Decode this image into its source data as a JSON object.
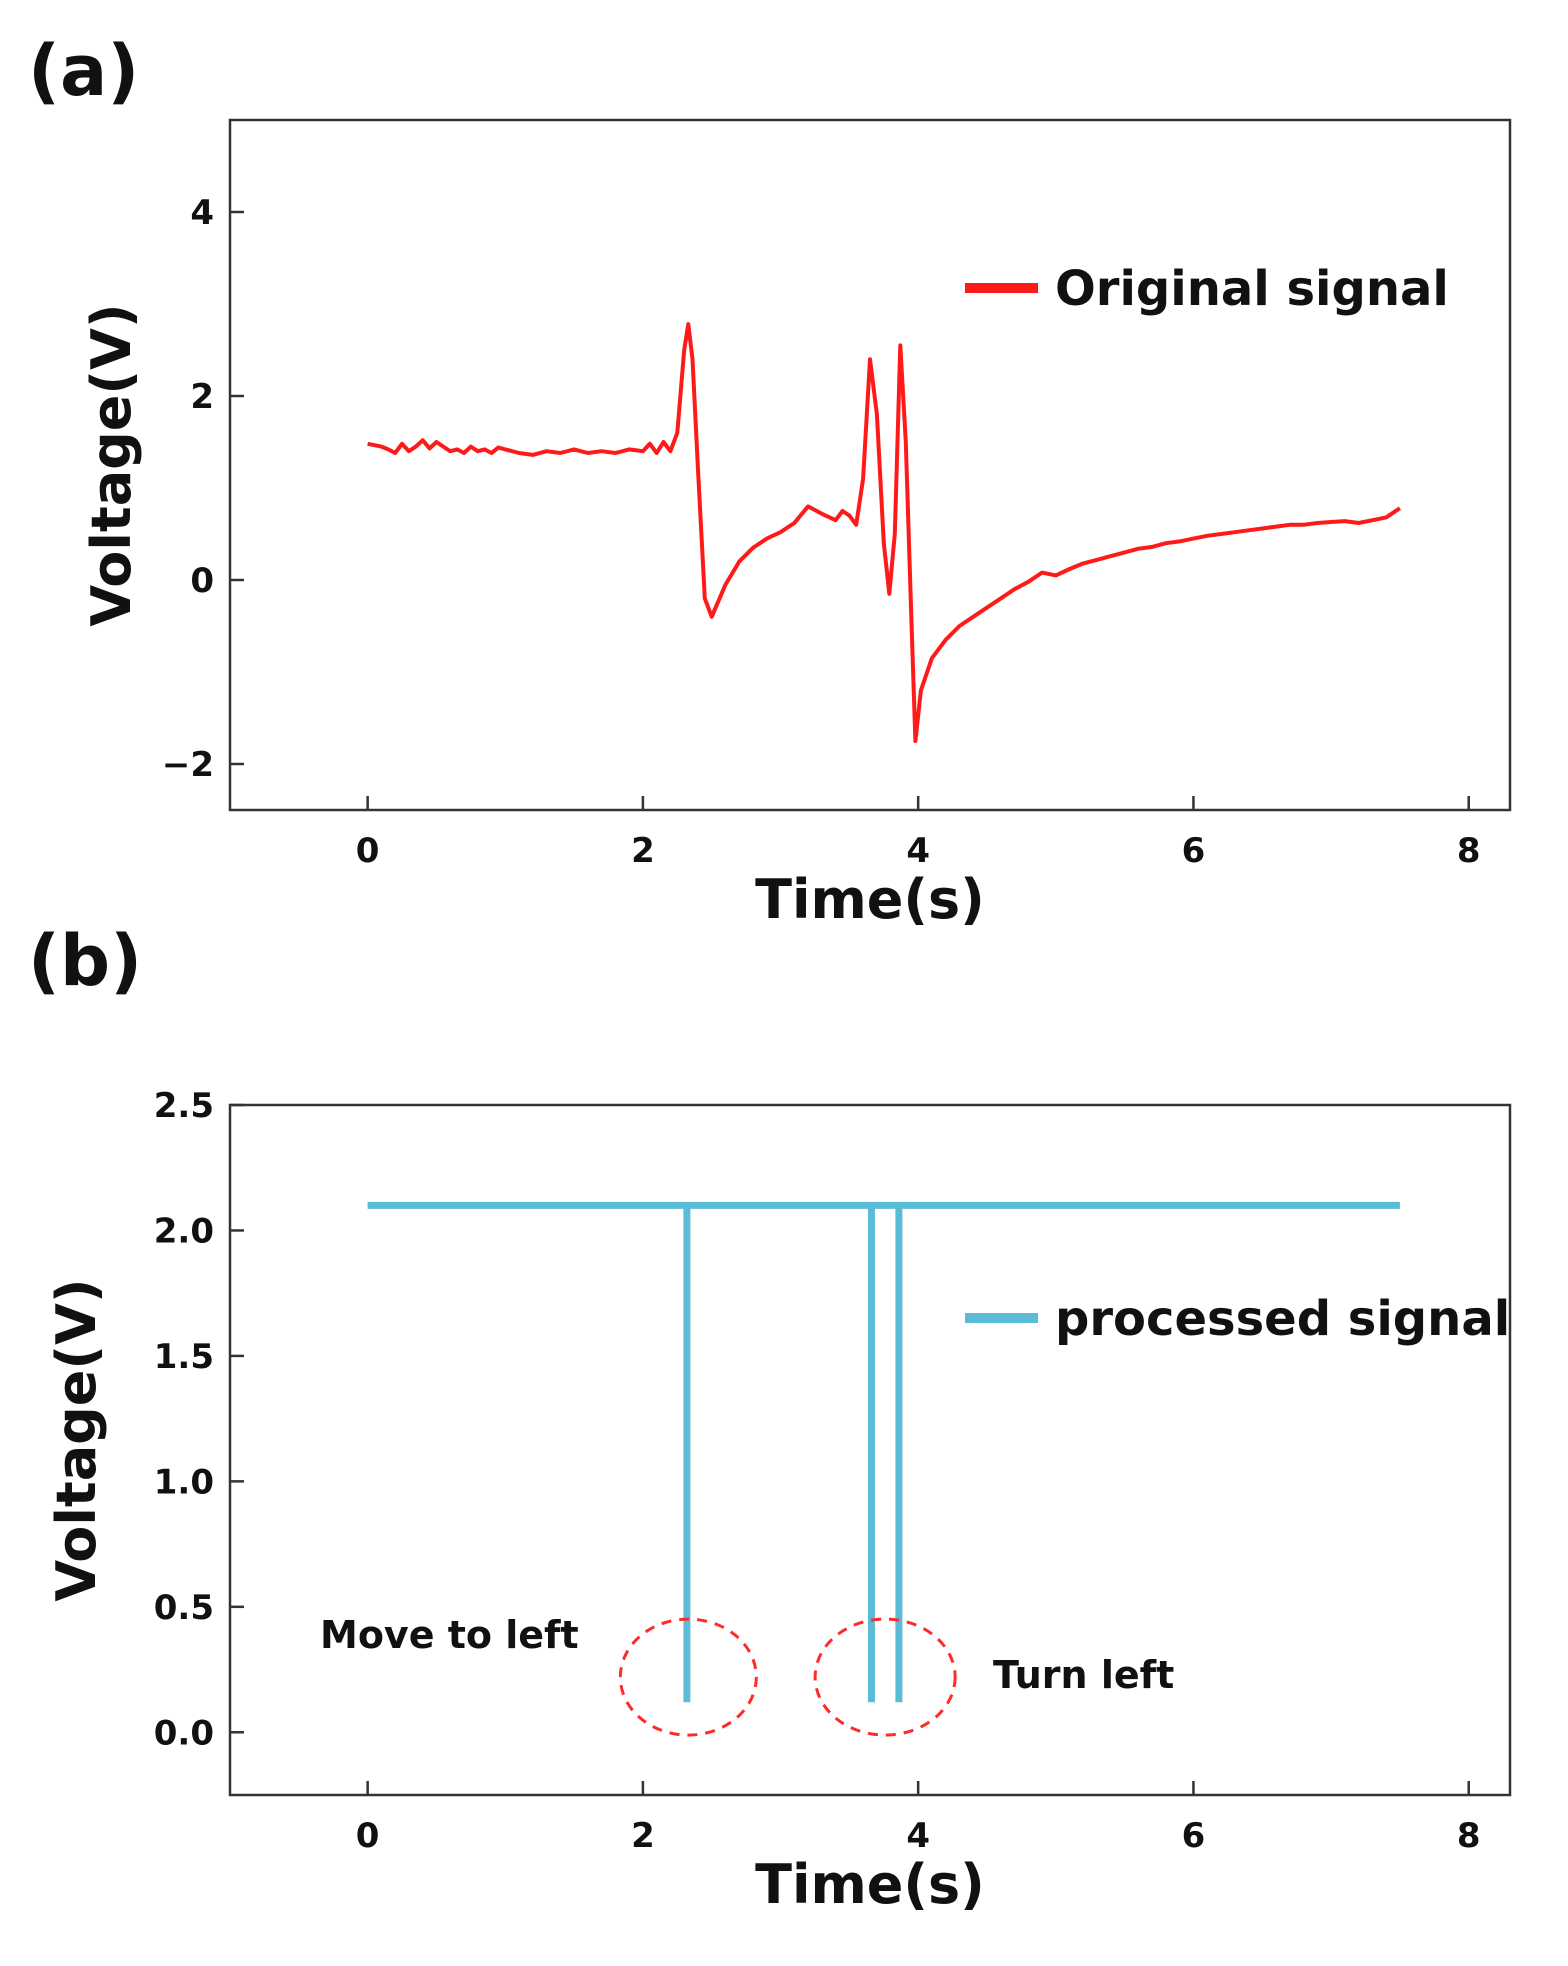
{
  "chart_data": [
    {
      "panel": "(a)",
      "type": "line",
      "title": "",
      "xlabel": "Time(s)",
      "ylabel": "Voltage(V)",
      "xlim": [
        -1,
        8.3
      ],
      "ylim": [
        -2.5,
        5
      ],
      "xticks": [
        0,
        2,
        4,
        6,
        8
      ],
      "yticks": [
        -2,
        0,
        2,
        4
      ],
      "ytick_labels": [
        "−2",
        "0",
        "2",
        "4"
      ],
      "grid": false,
      "legend_position": "top-right",
      "series": [
        {
          "name": "Original signal",
          "color": "#ff1a1a",
          "x": [
            0.0,
            0.1,
            0.15,
            0.2,
            0.25,
            0.3,
            0.35,
            0.4,
            0.45,
            0.5,
            0.55,
            0.6,
            0.65,
            0.7,
            0.75,
            0.8,
            0.85,
            0.9,
            0.95,
            1.0,
            1.1,
            1.2,
            1.3,
            1.4,
            1.5,
            1.6,
            1.7,
            1.8,
            1.9,
            2.0,
            2.05,
            2.1,
            2.15,
            2.2,
            2.25,
            2.3,
            2.33,
            2.36,
            2.4,
            2.45,
            2.5,
            2.6,
            2.7,
            2.8,
            2.9,
            3.0,
            3.1,
            3.2,
            3.3,
            3.4,
            3.45,
            3.5,
            3.55,
            3.6,
            3.65,
            3.7,
            3.75,
            3.79,
            3.83,
            3.87,
            3.91,
            3.95,
            3.98,
            4.02,
            4.1,
            4.2,
            4.3,
            4.4,
            4.5,
            4.6,
            4.7,
            4.8,
            4.9,
            5.0,
            5.1,
            5.2,
            5.3,
            5.4,
            5.5,
            5.6,
            5.7,
            5.8,
            5.9,
            6.0,
            6.1,
            6.2,
            6.3,
            6.4,
            6.5,
            6.6,
            6.7,
            6.8,
            6.9,
            7.0,
            7.1,
            7.2,
            7.3,
            7.4,
            7.5
          ],
          "y": [
            1.48,
            1.45,
            1.42,
            1.38,
            1.48,
            1.4,
            1.45,
            1.52,
            1.43,
            1.5,
            1.45,
            1.4,
            1.42,
            1.38,
            1.45,
            1.4,
            1.42,
            1.38,
            1.44,
            1.42,
            1.38,
            1.36,
            1.4,
            1.38,
            1.42,
            1.38,
            1.4,
            1.38,
            1.42,
            1.4,
            1.48,
            1.38,
            1.5,
            1.4,
            1.6,
            2.5,
            2.78,
            2.4,
            1.2,
            -0.2,
            -0.4,
            -0.05,
            0.2,
            0.35,
            0.45,
            0.52,
            0.62,
            0.8,
            0.72,
            0.65,
            0.75,
            0.7,
            0.6,
            1.1,
            2.4,
            1.8,
            0.4,
            -0.15,
            0.5,
            2.55,
            1.5,
            -0.4,
            -1.75,
            -1.2,
            -0.85,
            -0.65,
            -0.5,
            -0.4,
            -0.3,
            -0.2,
            -0.1,
            -0.02,
            0.08,
            0.05,
            0.12,
            0.18,
            0.22,
            0.26,
            0.3,
            0.34,
            0.36,
            0.4,
            0.42,
            0.45,
            0.48,
            0.5,
            0.52,
            0.54,
            0.56,
            0.58,
            0.6,
            0.6,
            0.62,
            0.63,
            0.64,
            0.62,
            0.65,
            0.68,
            0.78
          ]
        }
      ]
    },
    {
      "panel": "(b)",
      "type": "line",
      "title": "",
      "xlabel": "Time(s)",
      "ylabel": "Voltage(V)",
      "xlim": [
        -1,
        8.3
      ],
      "ylim": [
        -0.25,
        2.5
      ],
      "xticks": [
        0,
        2,
        4,
        6,
        8
      ],
      "yticks": [
        0.0,
        0.5,
        1.0,
        1.5,
        2.0,
        2.5
      ],
      "ytick_labels": [
        "0.0",
        "0.5",
        "1.0",
        "1.5",
        "2.0",
        "2.5"
      ],
      "grid": false,
      "legend_position": "middle-right",
      "series": [
        {
          "name": "processed signal",
          "color": "#5bbcd8",
          "x": [
            0.0,
            2.32,
            2.32,
            2.32,
            2.32,
            3.66,
            3.66,
            3.66,
            3.66,
            3.86,
            3.86,
            3.86,
            3.86,
            7.5
          ],
          "y": [
            2.1,
            2.1,
            0.12,
            0.12,
            2.1,
            2.1,
            0.12,
            0.12,
            2.1,
            2.1,
            0.12,
            0.12,
            2.1,
            2.1
          ]
        }
      ],
      "annotations": [
        {
          "text": "Move to left",
          "circle_center_x": 2.33,
          "circle_center_y": 0.22
        },
        {
          "text": "Turn left",
          "circle_center_x": 3.76,
          "circle_center_y": 0.22
        }
      ]
    }
  ]
}
